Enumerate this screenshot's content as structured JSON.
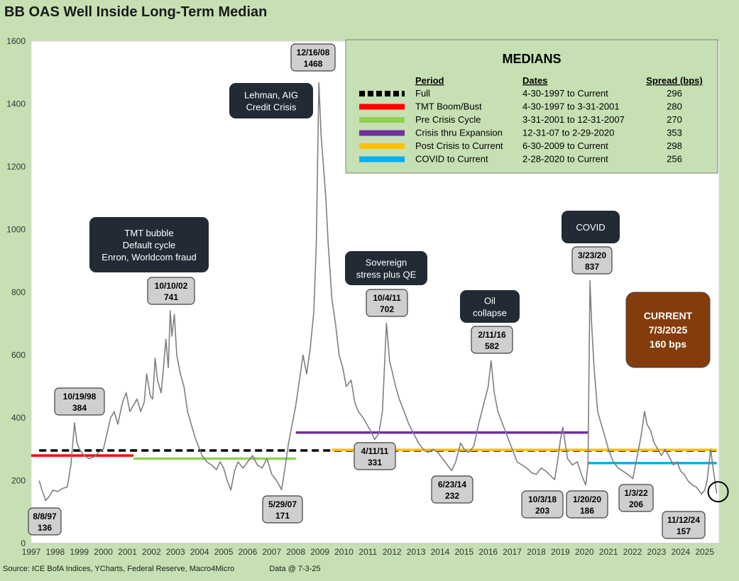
{
  "title": "BB OAS Well Inside Long-Term Median",
  "footer": {
    "source": "Source: ICE BofA Indices, YCharts, Federal Reserve, Macro4Micro",
    "data_date": "Data @ 7-3-25"
  },
  "colors": {
    "background": "#c6e0b4",
    "plot_area": "#ffffff",
    "series": "#7f7f7f",
    "callout_dark": "#222a35",
    "callout_value": "#d0cece",
    "current_box": "#843c0c"
  },
  "chart_data": {
    "type": "line",
    "title": "BB OAS Well Inside Long-Term Median",
    "xlabel": "",
    "ylabel": "",
    "xlim": [
      1997.0,
      2025.6
    ],
    "ylim": [
      0,
      1600
    ],
    "yticks": [
      0,
      200,
      400,
      600,
      800,
      1000,
      1200,
      1400,
      1600
    ],
    "xticks": [
      "1997",
      "1998",
      "1999",
      "2000",
      "2001",
      "2002",
      "2003",
      "2004",
      "2005",
      "2006",
      "2007",
      "2008",
      "2009",
      "2010",
      "2011",
      "2012",
      "2013",
      "2014",
      "2015",
      "2016",
      "2017",
      "2018",
      "2019",
      "2020",
      "2021",
      "2022",
      "2023",
      "2024",
      "2025"
    ],
    "grid": false,
    "series": {
      "name": "",
      "color": "#7f7f7f",
      "points": [
        [
          1997.33,
          200
        ],
        [
          1997.45,
          170
        ],
        [
          1997.6,
          136
        ],
        [
          1997.75,
          150
        ],
        [
          1997.9,
          170
        ],
        [
          1998.1,
          165
        ],
        [
          1998.3,
          175
        ],
        [
          1998.5,
          180
        ],
        [
          1998.65,
          250
        ],
        [
          1998.8,
          384
        ],
        [
          1998.9,
          320
        ],
        [
          1999.0,
          300
        ],
        [
          1999.2,
          280
        ],
        [
          1999.4,
          270
        ],
        [
          1999.6,
          275
        ],
        [
          1999.8,
          290
        ],
        [
          2000.0,
          300
        ],
        [
          2000.15,
          350
        ],
        [
          2000.3,
          400
        ],
        [
          2000.45,
          420
        ],
        [
          2000.6,
          380
        ],
        [
          2000.8,
          450
        ],
        [
          2000.95,
          480
        ],
        [
          2001.1,
          420
        ],
        [
          2001.25,
          440
        ],
        [
          2001.4,
          460
        ],
        [
          2001.55,
          420
        ],
        [
          2001.7,
          450
        ],
        [
          2001.8,
          540
        ],
        [
          2001.95,
          470
        ],
        [
          2002.05,
          460
        ],
        [
          2002.15,
          590
        ],
        [
          2002.25,
          520
        ],
        [
          2002.4,
          480
        ],
        [
          2002.5,
          560
        ],
        [
          2002.6,
          650
        ],
        [
          2002.7,
          560
        ],
        [
          2002.78,
          741
        ],
        [
          2002.85,
          660
        ],
        [
          2002.95,
          730
        ],
        [
          2003.05,
          600
        ],
        [
          2003.2,
          540
        ],
        [
          2003.35,
          500
        ],
        [
          2003.5,
          420
        ],
        [
          2003.65,
          380
        ],
        [
          2003.8,
          340
        ],
        [
          2003.95,
          310
        ],
        [
          2004.1,
          280
        ],
        [
          2004.3,
          260
        ],
        [
          2004.5,
          250
        ],
        [
          2004.7,
          235
        ],
        [
          2004.85,
          260
        ],
        [
          2005.0,
          240
        ],
        [
          2005.15,
          200
        ],
        [
          2005.3,
          170
        ],
        [
          2005.45,
          230
        ],
        [
          2005.6,
          260
        ],
        [
          2005.8,
          240
        ],
        [
          2006.0,
          260
        ],
        [
          2006.2,
          280
        ],
        [
          2006.4,
          250
        ],
        [
          2006.6,
          240
        ],
        [
          2006.8,
          270
        ],
        [
          2007.0,
          220
        ],
        [
          2007.2,
          200
        ],
        [
          2007.41,
          171
        ],
        [
          2007.55,
          240
        ],
        [
          2007.7,
          320
        ],
        [
          2007.85,
          380
        ],
        [
          2008.0,
          440
        ],
        [
          2008.15,
          520
        ],
        [
          2008.3,
          600
        ],
        [
          2008.45,
          540
        ],
        [
          2008.6,
          620
        ],
        [
          2008.75,
          740
        ],
        [
          2008.85,
          950
        ],
        [
          2008.96,
          1468
        ],
        [
          2009.05,
          1300
        ],
        [
          2009.15,
          1200
        ],
        [
          2009.25,
          1100
        ],
        [
          2009.35,
          950
        ],
        [
          2009.5,
          780
        ],
        [
          2009.65,
          700
        ],
        [
          2009.8,
          600
        ],
        [
          2009.95,
          560
        ],
        [
          2010.1,
          500
        ],
        [
          2010.3,
          520
        ],
        [
          2010.45,
          450
        ],
        [
          2010.6,
          420
        ],
        [
          2010.8,
          400
        ],
        [
          2010.95,
          380
        ],
        [
          2011.1,
          360
        ],
        [
          2011.28,
          331
        ],
        [
          2011.45,
          350
        ],
        [
          2011.6,
          420
        ],
        [
          2011.77,
          702
        ],
        [
          2011.9,
          580
        ],
        [
          2012.0,
          550
        ],
        [
          2012.15,
          500
        ],
        [
          2012.3,
          460
        ],
        [
          2012.5,
          420
        ],
        [
          2012.7,
          380
        ],
        [
          2012.9,
          350
        ],
        [
          2013.1,
          320
        ],
        [
          2013.3,
          300
        ],
        [
          2013.5,
          290
        ],
        [
          2013.7,
          300
        ],
        [
          2013.9,
          290
        ],
        [
          2014.1,
          270
        ],
        [
          2014.3,
          250
        ],
        [
          2014.48,
          232
        ],
        [
          2014.65,
          260
        ],
        [
          2014.85,
          320
        ],
        [
          2015.0,
          300
        ],
        [
          2015.2,
          290
        ],
        [
          2015.4,
          310
        ],
        [
          2015.6,
          380
        ],
        [
          2015.8,
          440
        ],
        [
          2016.0,
          500
        ],
        [
          2016.12,
          582
        ],
        [
          2016.25,
          480
        ],
        [
          2016.4,
          420
        ],
        [
          2016.6,
          380
        ],
        [
          2016.8,
          340
        ],
        [
          2017.0,
          300
        ],
        [
          2017.2,
          260
        ],
        [
          2017.4,
          250
        ],
        [
          2017.6,
          240
        ],
        [
          2017.8,
          225
        ],
        [
          2018.0,
          220
        ],
        [
          2018.2,
          240
        ],
        [
          2018.4,
          230
        ],
        [
          2018.6,
          215
        ],
        [
          2018.76,
          203
        ],
        [
          2018.9,
          270
        ],
        [
          2019.0,
          330
        ],
        [
          2019.1,
          370
        ],
        [
          2019.3,
          270
        ],
        [
          2019.5,
          250
        ],
        [
          2019.7,
          260
        ],
        [
          2019.9,
          215
        ],
        [
          2020.05,
          186
        ],
        [
          2020.15,
          250
        ],
        [
          2020.23,
          837
        ],
        [
          2020.3,
          700
        ],
        [
          2020.4,
          560
        ],
        [
          2020.55,
          420
        ],
        [
          2020.7,
          380
        ],
        [
          2020.85,
          340
        ],
        [
          2021.0,
          300
        ],
        [
          2021.2,
          260
        ],
        [
          2021.4,
          240
        ],
        [
          2021.6,
          230
        ],
        [
          2021.8,
          220
        ],
        [
          2022.01,
          206
        ],
        [
          2022.2,
          280
        ],
        [
          2022.35,
          340
        ],
        [
          2022.5,
          420
        ],
        [
          2022.6,
          380
        ],
        [
          2022.75,
          360
        ],
        [
          2022.9,
          320
        ],
        [
          2023.05,
          300
        ],
        [
          2023.2,
          280
        ],
        [
          2023.35,
          300
        ],
        [
          2023.5,
          280
        ],
        [
          2023.7,
          250
        ],
        [
          2023.85,
          260
        ],
        [
          2024.0,
          230
        ],
        [
          2024.15,
          220
        ],
        [
          2024.3,
          200
        ],
        [
          2024.5,
          185
        ],
        [
          2024.65,
          180
        ],
        [
          2024.87,
          157
        ],
        [
          2025.0,
          170
        ],
        [
          2025.1,
          200
        ],
        [
          2025.25,
          300
        ],
        [
          2025.35,
          240
        ],
        [
          2025.5,
          160
        ]
      ]
    },
    "median_lines": {
      "header": "MEDIANS",
      "columns": [
        "Period",
        "Dates",
        "Spread (bps)"
      ],
      "rows": [
        {
          "period": "Full",
          "dates": "4-30-1997 to Current",
          "spread": "296",
          "value": 296,
          "x": [
            1997.33,
            2025.5
          ],
          "color": "#000000",
          "dashed": true
        },
        {
          "period": "TMT  Boom/Bust",
          "dates": "4-30-1997 to 3-31-2001",
          "spread": "280",
          "value": 280,
          "x": [
            1997.0,
            2001.25
          ],
          "color": "#ff0000",
          "dashed": false
        },
        {
          "period": "Pre Crisis Cycle",
          "dates": "3-31-2001 to 12-31-2007",
          "spread": "270",
          "value": 270,
          "x": [
            2001.25,
            2008.0
          ],
          "color": "#92d050",
          "dashed": false
        },
        {
          "period": "Crisis thru Expansion",
          "dates": "12-31-07 to 2-29-2020",
          "spread": "353",
          "value": 353,
          "x": [
            2008.0,
            2020.16
          ],
          "color": "#7030a0",
          "dashed": false
        },
        {
          "period": "Post Crisis to Current",
          "dates": "6-30-2009  to Current",
          "spread": "298",
          "value": 298,
          "x": [
            2009.5,
            2025.5
          ],
          "color": "#ffc000",
          "dashed": false
        },
        {
          "period": "COVID to Current",
          "dates": "2-28-2020  to Current",
          "spread": "256",
          "value": 256,
          "x": [
            2020.16,
            2025.5
          ],
          "color": "#00b0f0",
          "dashed": false
        }
      ]
    },
    "point_labels": [
      {
        "date": "8/8/97",
        "value": "136"
      },
      {
        "date": "10/19/98",
        "value": "384"
      },
      {
        "date": "10/10/02",
        "value": "741"
      },
      {
        "date": "5/29/07",
        "value": "171"
      },
      {
        "date": "12/16/08",
        "value": "1468"
      },
      {
        "date": "10/4/11",
        "value": "702"
      },
      {
        "date": "4/11/11",
        "value": "331"
      },
      {
        "date": "6/23/14",
        "value": "232"
      },
      {
        "date": "2/11/16",
        "value": "582"
      },
      {
        "date": "10/3/18",
        "value": "203"
      },
      {
        "date": "1/20/20",
        "value": "186"
      },
      {
        "date": "3/23/20",
        "value": "837"
      },
      {
        "date": "1/3/22",
        "value": "206"
      },
      {
        "date": "11/12/24",
        "value": "157"
      }
    ],
    "annotations": [
      {
        "lines": [
          "Lehman, AIG",
          "Credit Crisis"
        ]
      },
      {
        "lines": [
          "TMT bubble",
          "Default cycle",
          "Enron, Worldcom fraud"
        ]
      },
      {
        "lines": [
          "Sovereign",
          "stress plus QE"
        ]
      },
      {
        "lines": [
          "Oil",
          "collapse"
        ]
      },
      {
        "lines": [
          "COVID"
        ]
      }
    ],
    "current": {
      "lines": [
        "CURRENT",
        "7/3/2025",
        "160 bps"
      ],
      "date": "7/3/2025",
      "value": 160
    }
  }
}
